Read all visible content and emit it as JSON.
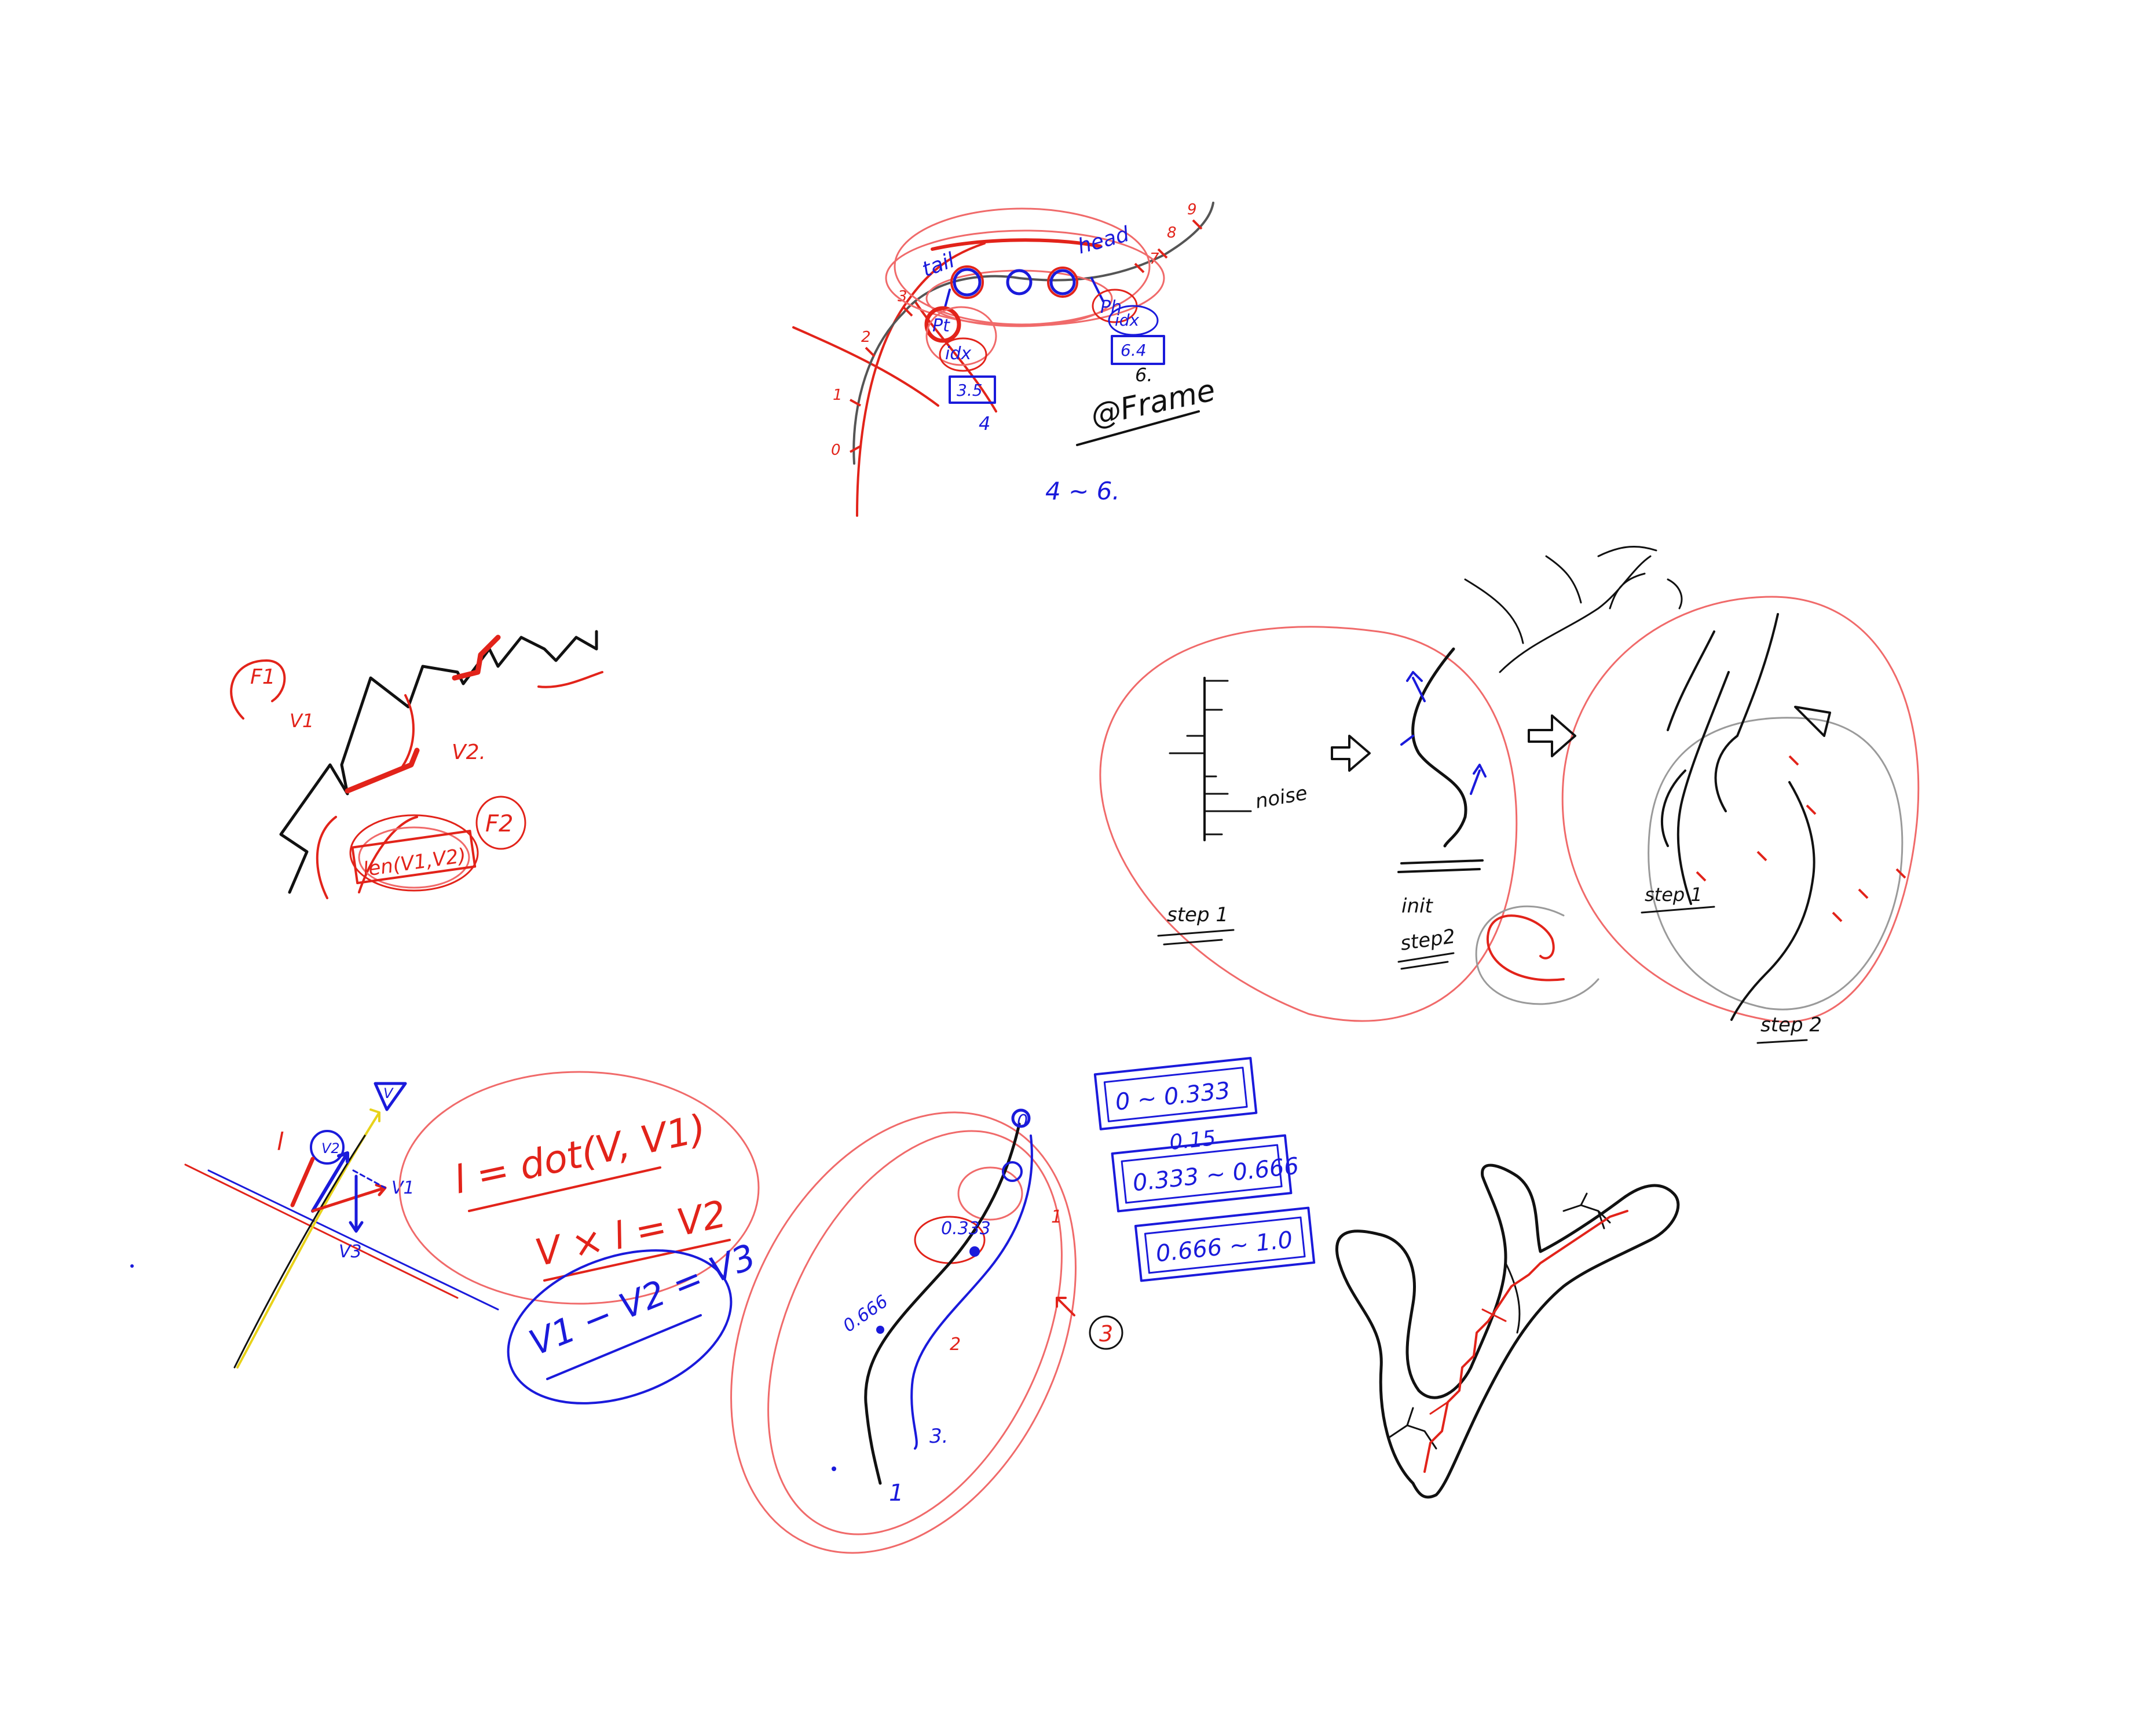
{
  "colors": {
    "black": "#111111",
    "red": "#e2231a",
    "light_red": "#f06a6a",
    "blue": "#1a1adb",
    "gray": "#9a9a9a",
    "yellow": "#e8d21a"
  },
  "top_sketch": {
    "tail": "tail",
    "head": "head",
    "pt_label": "Pt",
    "ph_label": "Ph",
    "idx_t": "idx",
    "idx_h": "idx",
    "val_t": "3.5",
    "val_h": "6.4",
    "num_t": "4",
    "num_h": "6.",
    "frame": "@Frame",
    "range": "4 ~ 6.",
    "ticks": [
      "0",
      "1",
      "2",
      "3",
      "7",
      "8",
      "9"
    ]
  },
  "left_sketch": {
    "f1": "F1",
    "v1": "V1",
    "v2": "V2.",
    "f2": "F2",
    "len": "len(V1,V2)"
  },
  "right_sketch": {
    "noise": "noise",
    "step1_a": "step 1",
    "init": "init",
    "step2_a": "step2",
    "step1_b": "step 1",
    "step2_b": "step 2"
  },
  "bottom_left": {
    "l": "l",
    "v2": "V2",
    "v1": "V1",
    "v3": "V3",
    "vhat": "V",
    "eq1": "l = dot(V, V1)",
    "eq2": "V × l = V2",
    "eq3": "V1 − V2 = V3"
  },
  "bottom_mid": {
    "zero": "0",
    "p333": "0.333",
    "p666": "0.666",
    "one": "1",
    "n1": "1",
    "n2": "2",
    "n3": "3.",
    "circled3": "3",
    "box1": "0 ~ 0.333",
    "box1_sub": "0.15",
    "box2": "0.333 ~ 0.666",
    "box3": "0.666 ~ 1.0"
  }
}
